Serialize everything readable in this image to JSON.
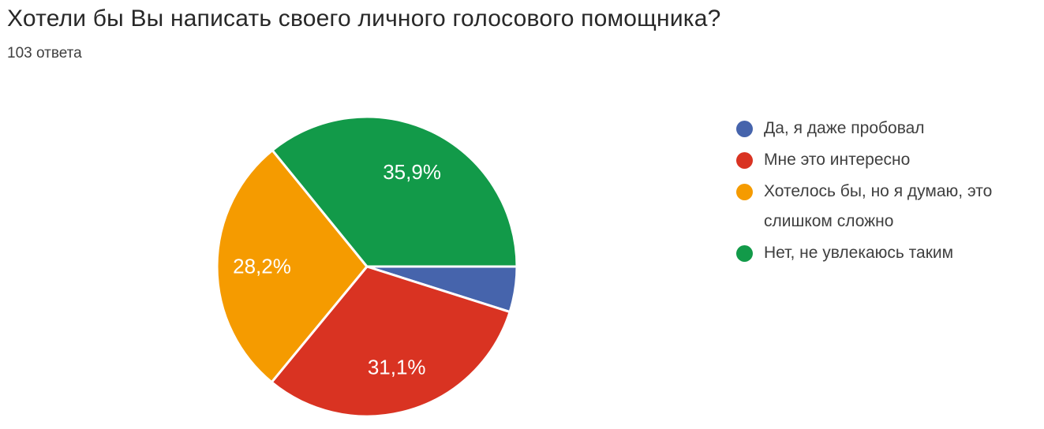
{
  "header": {
    "title": "Хотели бы Вы написать своего личного голосового помощника?",
    "responses": "103 ответа"
  },
  "chart_data": {
    "type": "pie",
    "title": "Хотели бы Вы написать своего личного голосового помощника?",
    "subtitle": "103 ответа",
    "total_responses": 103,
    "legend_position": "right",
    "start_angle_deg": 0,
    "direction": "clockwise",
    "slices": [
      {
        "label": "Да, я даже пробовал",
        "value_pct": 4.9,
        "pct_label": "",
        "color": "#4664AC"
      },
      {
        "label": "Мне это интересно",
        "value_pct": 31.1,
        "pct_label": "31,1%",
        "color": "#D93322"
      },
      {
        "label": "Хотелось бы, но я думаю, это слишком сложно",
        "value_pct": 28.2,
        "pct_label": "28,2%",
        "color": "#F59B00"
      },
      {
        "label": "Нет, не увлекаюсь таким",
        "value_pct": 35.9,
        "pct_label": "35,9%",
        "color": "#129A49"
      }
    ],
    "label_color_on_slice": "#ffffff",
    "slice_gap_color": "#ffffff"
  }
}
